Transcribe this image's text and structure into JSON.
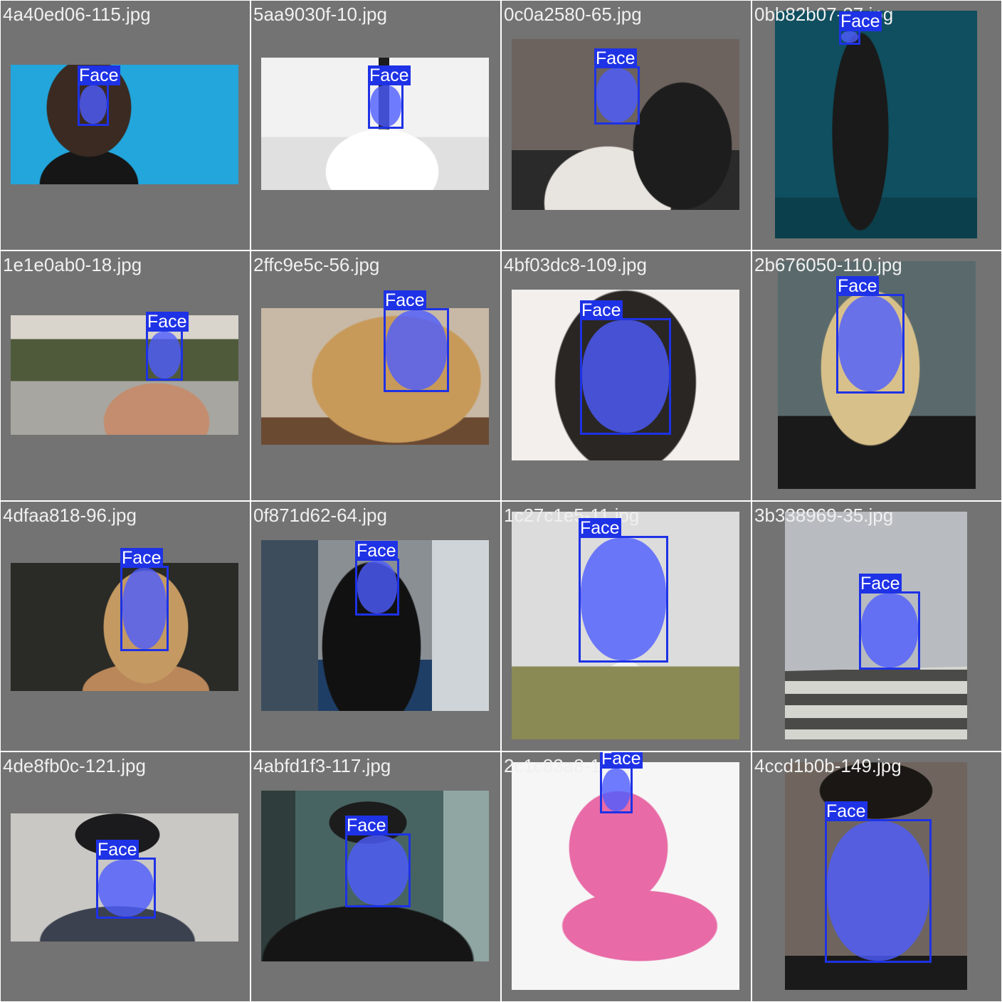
{
  "grid": {
    "tiles": [
      {
        "filename": "4a40ed06-115.jpg",
        "detection_label": "Face"
      },
      {
        "filename": "5aa9030f-10.jpg",
        "detection_label": "Face"
      },
      {
        "filename": "0c0a2580-65.jpg",
        "detection_label": "Face"
      },
      {
        "filename": "0bb82b07-37.jpg",
        "detection_label": "Face"
      },
      {
        "filename": "1e1e0ab0-18.jpg",
        "detection_label": "Face"
      },
      {
        "filename": "2ffc9e5c-56.jpg",
        "detection_label": "Face"
      },
      {
        "filename": "4bf03dc8-109.jpg",
        "detection_label": "Face"
      },
      {
        "filename": "2b676050-110.jpg",
        "detection_label": "Face"
      },
      {
        "filename": "4dfaa818-96.jpg",
        "detection_label": "Face"
      },
      {
        "filename": "0f871d62-64.jpg",
        "detection_label": "Face"
      },
      {
        "filename": "1c27c1e5-11.jpg",
        "detection_label": "Face"
      },
      {
        "filename": "3b338969-35.jpg",
        "detection_label": "Face"
      },
      {
        "filename": "4de8fb0c-121.jpg",
        "detection_label": "Face"
      },
      {
        "filename": "4abfd1f3-117.jpg",
        "detection_label": "Face"
      },
      {
        "filename": "2c1c83a8-1.jpg",
        "detection_label": "Face"
      },
      {
        "filename": "4ccd1b0b-149.jpg",
        "detection_label": "Face"
      }
    ]
  },
  "colors": {
    "tile_background": "#737373",
    "box_stroke": "#1e32e6",
    "mask_fill": "#4e5cff",
    "label_text": "#ffffff"
  }
}
